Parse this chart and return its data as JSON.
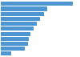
{
  "values": [
    4800,
    3100,
    2900,
    2650,
    2400,
    2200,
    2000,
    1900,
    1800,
    1600,
    700
  ],
  "bar_color": "#4e96d1",
  "background_color": "#ffffff",
  "plot_bg_color": "#f2f2f2",
  "xlim": [
    0,
    5200
  ],
  "n_bars": 11,
  "bar_height": 0.82
}
